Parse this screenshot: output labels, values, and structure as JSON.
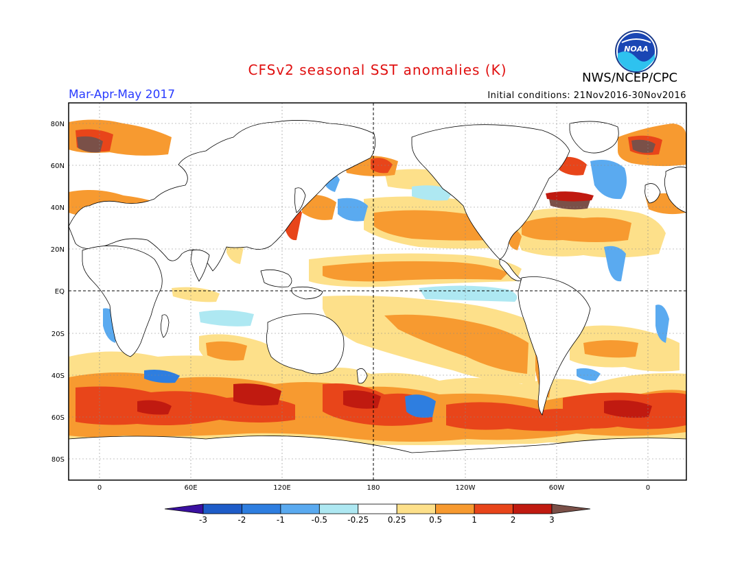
{
  "title": "CFSv2 seasonal SST anomalies (K)",
  "org": "NWS/NCEP/CPC",
  "logo_text": "NOAA",
  "period": "Mar-Apr-May 2017",
  "initial_conditions": "Initial conditions: 21Nov2016-30Nov2016",
  "lat_labels": [
    "80N",
    "60N",
    "40N",
    "20N",
    "EQ",
    "20S",
    "40S",
    "60S",
    "80S"
  ],
  "lon_labels": [
    "0",
    "60E",
    "120E",
    "180",
    "120W",
    "60W",
    "0"
  ],
  "colorbar": {
    "labels": [
      "-3",
      "-2",
      "-1",
      "-0.5",
      "-0.25",
      "0.25",
      "0.5",
      "1",
      "2",
      "3"
    ],
    "colors": [
      "#3a10a0",
      "#1e5cc8",
      "#2e7ee0",
      "#5aaaf0",
      "#aee8f2",
      "#ffffff",
      "#fde08a",
      "#f79a30",
      "#e8451a",
      "#c01a10",
      "#7a5048"
    ]
  },
  "anomaly_colors": {
    "weak_cool": "#aee8f2",
    "cool": "#5aaaf0",
    "moderate_cool": "#2e7ee0",
    "weak_warm": "#fde08a",
    "warm": "#f79a30",
    "moderate_warm": "#e8451a",
    "strong_warm": "#c01a10",
    "extreme_warm": "#7a5048"
  }
}
